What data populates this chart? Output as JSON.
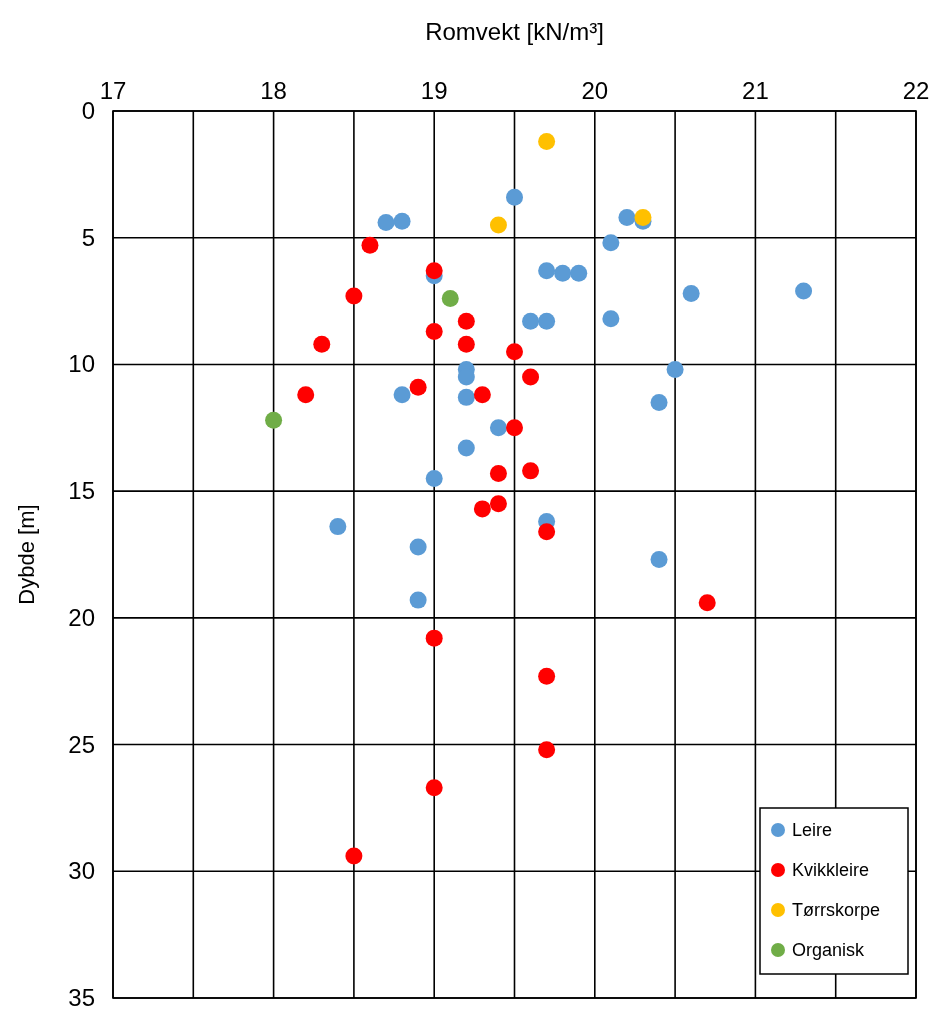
{
  "chart_data": {
    "type": "scatter",
    "xlabel": "Romvekt [kN/m³]",
    "ylabel": "Dybde [m]",
    "xlim": [
      17,
      22
    ],
    "xticks": [
      17,
      {
        "value": 17.5,
        "label": null
      },
      18,
      {
        "value": 18.5,
        "label": null
      },
      19,
      {
        "value": 19.5,
        "label": null
      },
      20,
      {
        "value": 20.5,
        "label": null
      },
      21,
      {
        "value": 21.5,
        "label": null
      },
      22
    ],
    "ylim": [
      35,
      0
    ],
    "yticks": [
      0,
      5,
      10,
      15,
      20,
      25,
      30,
      35
    ],
    "grid": true,
    "legend": "bottom right",
    "marker": "circle",
    "series": [
      {
        "name": "Leire",
        "color": "#5b9bd5",
        "x": [
          18.7,
          18.8,
          19.5,
          20.2,
          20.3,
          20.1,
          19.7,
          19.8,
          19.9,
          19.0,
          20.6,
          21.3,
          19.6,
          19.7,
          20.1,
          19.2,
          19.2,
          19.2,
          20.5,
          20.4,
          18.8,
          19.4,
          19.2,
          19.0,
          18.4,
          19.7,
          18.9,
          20.4,
          18.9
        ],
        "values": [
          4.4,
          4.35,
          3.4,
          4.2,
          4.35,
          5.2,
          6.3,
          6.4,
          6.4,
          6.5,
          7.2,
          7.1,
          8.3,
          8.3,
          8.2,
          10.2,
          10.5,
          11.3,
          10.2,
          11.5,
          11.2,
          12.5,
          13.3,
          14.5,
          16.4,
          16.2,
          17.2,
          17.7,
          19.3
        ]
      },
      {
        "name": "Kvikkleire",
        "color": "#ff0000",
        "x": [
          18.6,
          19.0,
          18.5,
          19.2,
          19.0,
          18.3,
          19.2,
          19.5,
          19.6,
          18.9,
          18.2,
          19.3,
          19.5,
          19.4,
          19.6,
          19.3,
          19.4,
          19.7,
          20.7,
          19.0,
          19.7,
          19.7,
          19.0,
          18.5
        ],
        "values": [
          5.3,
          6.3,
          7.3,
          8.3,
          8.7,
          9.2,
          9.2,
          9.5,
          10.5,
          10.9,
          11.2,
          11.2,
          12.5,
          14.3,
          14.2,
          15.7,
          15.5,
          16.6,
          19.4,
          20.8,
          22.3,
          25.2,
          26.7,
          29.4
        ]
      },
      {
        "name": "Tørrskorpe",
        "color": "#ffc000",
        "x": [
          19.7,
          19.4,
          20.3
        ],
        "values": [
          1.2,
          4.5,
          4.2
        ]
      },
      {
        "name": "Organisk",
        "color": "#70ad47",
        "x": [
          19.1,
          18.0
        ],
        "values": [
          7.4,
          12.2
        ]
      }
    ]
  }
}
